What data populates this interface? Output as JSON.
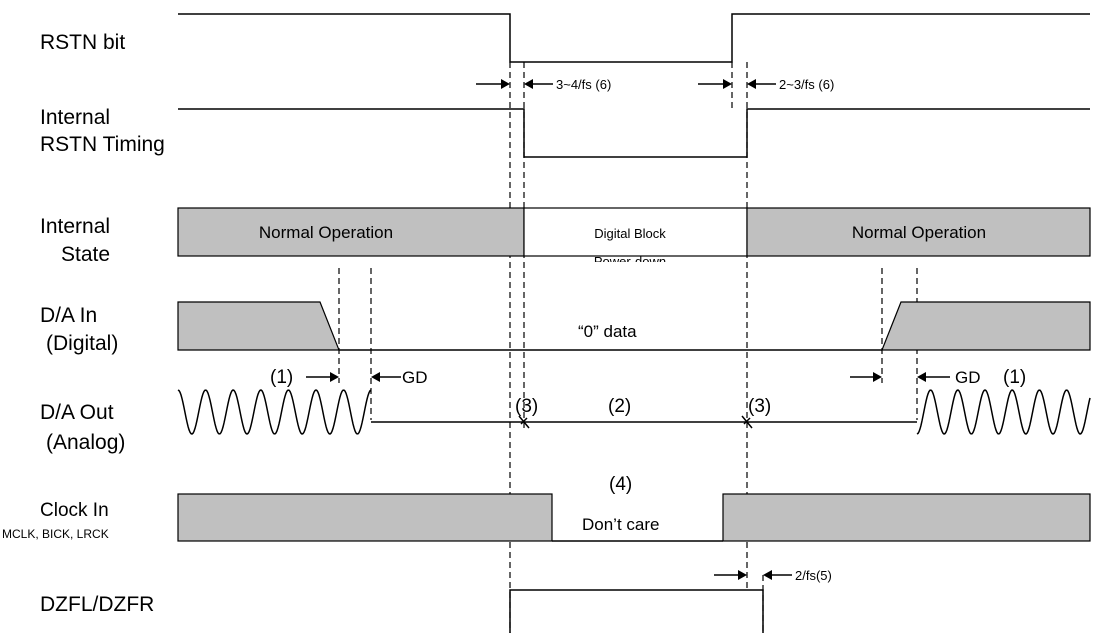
{
  "signals": {
    "rstn_bit": "RSTN bit",
    "internal_rstn_l1": "Internal",
    "internal_rstn_l2": "RSTN Timing",
    "internal_state_l1": "Internal",
    "internal_state_l2": "State",
    "da_in_l1": "D/A In",
    "da_in_l2": "(Digital)",
    "da_out_l1": "D/A Out",
    "da_out_l2": "(Analog)",
    "clock_in_l1": "Clock In",
    "clock_in_l2": "MCLK, BICK, LRCK",
    "dzf": "DZFL/DZFR"
  },
  "states": {
    "normal_left": "Normal Operation",
    "digital_block": "Digital Block",
    "digital_block_cut": "Power-down",
    "normal_right": "Normal Operation"
  },
  "annotations": {
    "t_3_4fs": "3~4/fs (6)",
    "t_2_3fs": "2~3/fs (6)",
    "zero_data": "“0” data",
    "n1_left": "(1)",
    "gd_left": "GD",
    "gd_right": "GD",
    "n1_right": "(1)",
    "n3_left": "(3)",
    "n2": "(2)",
    "n3_right": "(3)",
    "n4": "(4)",
    "dont_care": "Don’t care",
    "t_2fs": "2/fs(5)"
  }
}
